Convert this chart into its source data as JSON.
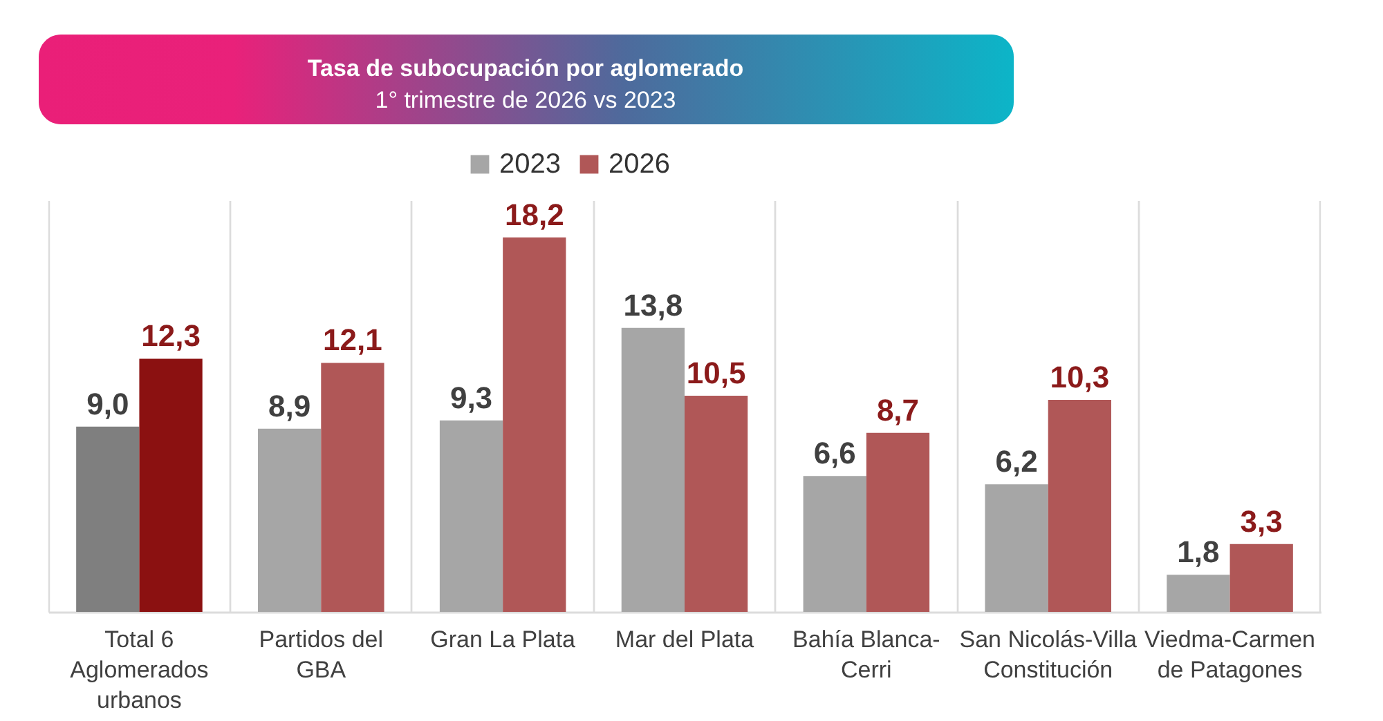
{
  "chart_data": {
    "type": "bar",
    "title": "Tasa de subocupación por aglomerado",
    "subtitle": "1° trimestre de 2026 vs 2023",
    "categories": [
      "Total 6\nAglomerados\nurbanos",
      "Partidos del\nGBA",
      "Gran La Plata",
      "Mar del Plata",
      "Bahía Blanca-\nCerri",
      "San Nicolás-Villa\nConstitución",
      "Viedma-Carmen\nde Patagones"
    ],
    "series": [
      {
        "name": "2023",
        "color": "#a6a6a6",
        "colors": [
          "#7f7f7f",
          "#a6a6a6",
          "#a6a6a6",
          "#a6a6a6",
          "#a6a6a6",
          "#a6a6a6",
          "#a6a6a6"
        ],
        "values": [
          9.0,
          8.9,
          9.3,
          13.8,
          6.6,
          6.2,
          1.8
        ],
        "value_labels": [
          "9,0",
          "8,9",
          "9,3",
          "13,8",
          "6,6",
          "6,2",
          "1,8"
        ]
      },
      {
        "name": "2026",
        "color": "#b05757",
        "colors": [
          "#8b1111",
          "#b05757",
          "#b05757",
          "#b05757",
          "#b05757",
          "#b05757",
          "#b05757"
        ],
        "values": [
          12.3,
          12.1,
          18.2,
          10.5,
          8.7,
          10.3,
          3.3
        ],
        "value_labels": [
          "12,3",
          "12,1",
          "18,2",
          "10,5",
          "8,7",
          "10,3",
          "3,3"
        ]
      }
    ],
    "legend": "top",
    "grid": "x",
    "tick_labels": "x"
  }
}
